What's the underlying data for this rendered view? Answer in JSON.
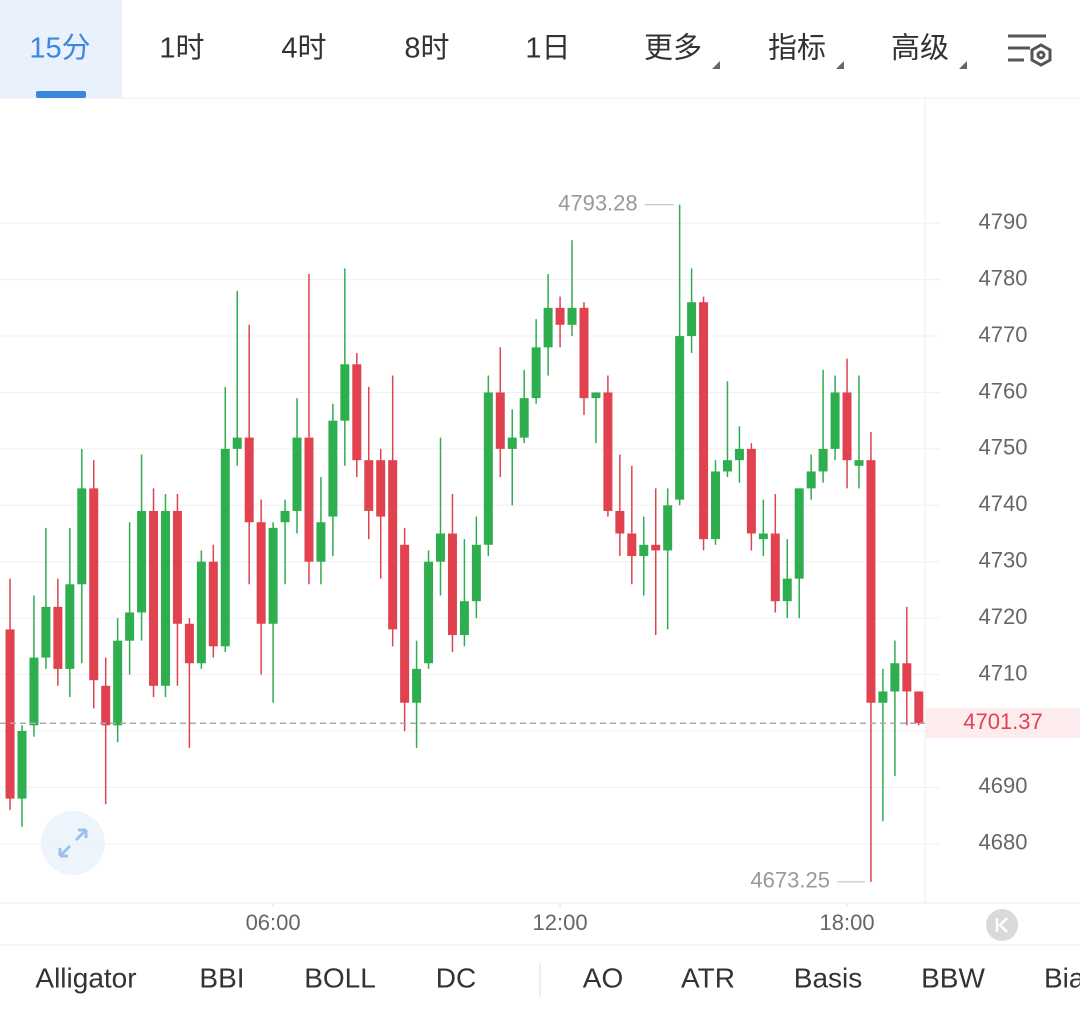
{
  "tabs": [
    "15分",
    "1时",
    "4时",
    "8时",
    "1日",
    "更多",
    "指标",
    "高级"
  ],
  "selected_tab": 0,
  "indicators": [
    "Alligator",
    "BBI",
    "BOLL",
    "DC",
    "AO",
    "ATR",
    "Basis",
    "BBW",
    "Bias"
  ],
  "chart_data": {
    "type": "candlestick",
    "up_color": "#2fae4f",
    "down_color": "#e0434f",
    "x": [
      0.5,
      0.75,
      1,
      1.25,
      1.5,
      1.75,
      2,
      2.25,
      2.5,
      2.75,
      3,
      3.25,
      3.5,
      3.75,
      4,
      4.25,
      4.5,
      4.75,
      5,
      5.25,
      5.5,
      5.75,
      6,
      6.25,
      6.5,
      6.75,
      7,
      7.25,
      7.5,
      7.75,
      8,
      8.25,
      8.5,
      8.75,
      9,
      9.25,
      9.5,
      9.75,
      10,
      10.25,
      10.5,
      10.75,
      11,
      11.25,
      11.5,
      11.75,
      12,
      12.25,
      12.5,
      12.75,
      13,
      13.25,
      13.5,
      13.75,
      14,
      14.25,
      14.5,
      14.75,
      15,
      15.25,
      15.5,
      15.75,
      16,
      16.25,
      16.5,
      16.75,
      17,
      17.25,
      17.5,
      17.75,
      18,
      18.25,
      18.5,
      18.75,
      19,
      19.25,
      19.5
    ],
    "open": [
      4718,
      4688,
      4701,
      4713,
      4722,
      4711,
      4726,
      4743,
      4708,
      4701,
      4716,
      4721,
      4739,
      4708,
      4739,
      4719,
      4712,
      4730,
      4715,
      4750,
      4752,
      4737,
      4719,
      4737,
      4739,
      4752,
      4730,
      4738,
      4755,
      4765,
      4748,
      4748,
      4748,
      4733,
      4705,
      4712,
      4730,
      4735,
      4717,
      4723,
      4733,
      4760,
      4750,
      4752,
      4759,
      4768,
      4775,
      4772,
      4775,
      4759,
      4760,
      4739,
      4735,
      4731,
      4733,
      4732,
      4741,
      4770,
      4776,
      4734,
      4746,
      4748,
      4750,
      4734,
      4735,
      4723,
      4727,
      4743,
      4746,
      4750,
      4760,
      4747,
      4748,
      4705,
      4707,
      4712,
      4707
    ],
    "high": [
      4727,
      4701,
      4724,
      4736,
      4727,
      4736,
      4750,
      4748,
      4713,
      4720,
      4737,
      4749,
      4743,
      4742,
      4742,
      4720,
      4732,
      4733,
      4761,
      4778,
      4772,
      4741,
      4737,
      4741,
      4759,
      4781,
      4745,
      4758,
      4782,
      4767,
      4761,
      4750,
      4763,
      4736,
      4716,
      4732,
      4752,
      4742,
      4734,
      4738,
      4763,
      4768,
      4757,
      4764,
      4773,
      4781,
      4777,
      4787,
      4776,
      4760,
      4763,
      4749,
      4747,
      4738,
      4743,
      4743,
      4793.28,
      4782,
      4777,
      4748,
      4762,
      4754,
      4751,
      4741,
      4742,
      4734,
      4743,
      4749,
      4764,
      4763,
      4766,
      4763,
      4753,
      4711,
      4716,
      4722,
      4707
    ],
    "low": [
      4686,
      4683,
      4699,
      4711,
      4708,
      4706,
      4712,
      4704,
      4687,
      4698,
      4710,
      4716,
      4706,
      4706,
      4708,
      4697,
      4711,
      4713,
      4714,
      4747,
      4726,
      4710,
      4705,
      4726,
      4735,
      4726,
      4726,
      4731,
      4747,
      4745,
      4734,
      4727,
      4715,
      4700,
      4697,
      4711,
      4724,
      4714,
      4715,
      4720,
      4731,
      4745,
      4740,
      4751,
      4758,
      4763,
      4768,
      4770,
      4756,
      4751,
      4738,
      4731,
      4726,
      4724,
      4717,
      4718,
      4740,
      4767,
      4732,
      4733,
      4745,
      4744,
      4732,
      4731,
      4721,
      4720,
      4720,
      4741,
      4744,
      4748,
      4743,
      4743,
      4673.25,
      4684,
      4692,
      4701,
      4701
    ],
    "close": [
      4688,
      4700,
      4713,
      4722,
      4711,
      4726,
      4743,
      4709,
      4701,
      4716,
      4721,
      4739,
      4708,
      4739,
      4719,
      4712,
      4730,
      4715,
      4750,
      4752,
      4737,
      4719,
      4736,
      4739,
      4752,
      4730,
      4737,
      4755,
      4765,
      4748,
      4739,
      4738,
      4718,
      4705,
      4711,
      4730,
      4735,
      4717,
      4723,
      4733,
      4760,
      4750,
      4752,
      4759,
      4768,
      4775,
      4772,
      4775,
      4759,
      4760,
      4739,
      4735,
      4731,
      4733,
      4732,
      4740,
      4770,
      4776,
      4734,
      4746,
      4748,
      4750,
      4735,
      4735,
      4723,
      4727,
      4743,
      4746,
      4750,
      4760,
      4748,
      4748,
      4705,
      4707,
      4712,
      4707,
      4701.37
    ],
    "xlim": [
      0.29,
      19.63
    ],
    "xticks": [
      {
        "value": 6,
        "label": "06:00"
      },
      {
        "value": 12,
        "label": "12:00"
      },
      {
        "value": 18,
        "label": "18:00"
      }
    ],
    "ylim": [
      4669.5,
      4812.2
    ],
    "yticks": [
      4680,
      4690,
      4700,
      4710,
      4720,
      4730,
      4740,
      4750,
      4760,
      4770,
      4780,
      4790
    ],
    "grid": true
  }
}
